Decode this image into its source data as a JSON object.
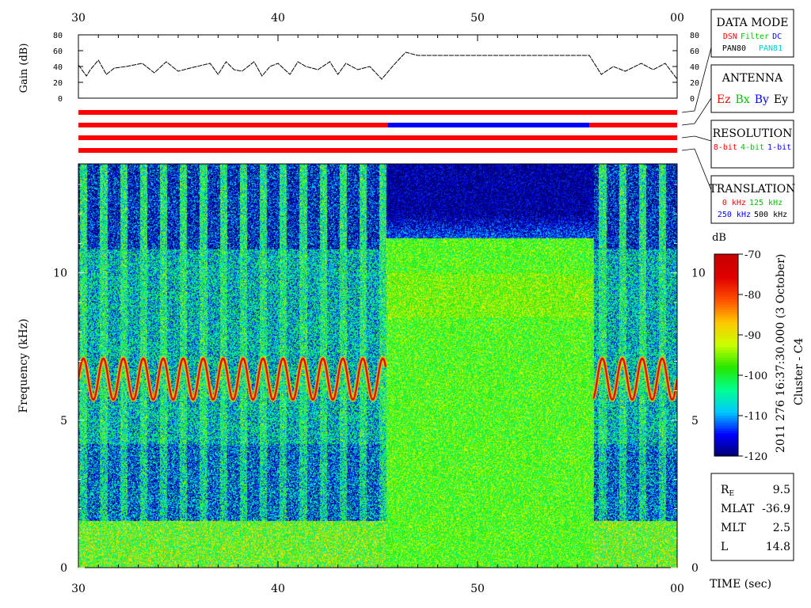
{
  "chart_data": {
    "type": "heatmap",
    "title_vertical_1": "2011 276 16:37:30.000 (3 October)",
    "title_vertical_2": "Cluster - C4",
    "xlabel": "TIME (sec)",
    "ylabel": "Frequency (kHz)",
    "x_ticks": [
      "30",
      "40",
      "50",
      "00"
    ],
    "x_range_sec": [
      30,
      60
    ],
    "y_ticks": [
      "0",
      "5",
      "10"
    ],
    "ylim": [
      0,
      13.7
    ],
    "colorbar": {
      "label": "dB",
      "ticks": [
        "-70",
        "-80",
        "-90",
        "-100",
        "-110",
        "-120"
      ],
      "range": [
        -120,
        -70
      ],
      "colors": [
        "#00006a",
        "#0000ff",
        "#00c8ff",
        "#00ff90",
        "#28e600",
        "#c8ff00",
        "#ffc800",
        "#ff5000",
        "#e00000",
        "#c80000"
      ]
    },
    "gain_panel": {
      "ylabel": "Gain (dB)",
      "y_ticks": [
        "0",
        "20",
        "40",
        "60",
        "80"
      ],
      "ylim": [
        0,
        80
      ],
      "x_sec": [
        30,
        30.4,
        30.6,
        31.0,
        31.4,
        31.8,
        32.4,
        33.2,
        33.8,
        34.4,
        35.0,
        35.6,
        36.6,
        37.0,
        37.4,
        37.8,
        38.2,
        38.8,
        39.2,
        39.6,
        40.0,
        40.6,
        41.0,
        41.4,
        42.0,
        42.6,
        43.0,
        43.4,
        44.0,
        44.6,
        45.2,
        45.8,
        46.4,
        47.0,
        55.6,
        56.2,
        56.8,
        57.4,
        58.2,
        58.8,
        59.4,
        60.0
      ],
      "values_db": [
        42,
        28,
        36,
        48,
        30,
        38,
        40,
        44,
        32,
        46,
        34,
        38,
        44,
        30,
        46,
        36,
        34,
        46,
        28,
        40,
        44,
        30,
        46,
        40,
        36,
        46,
        30,
        44,
        36,
        40,
        24,
        42,
        58,
        54,
        54,
        30,
        40,
        34,
        44,
        36,
        44,
        24
      ]
    },
    "status_rows": [
      {
        "row": "data-mode",
        "segments": [
          {
            "from": 30,
            "to": 60,
            "value": "DSN"
          }
        ]
      },
      {
        "row": "antenna",
        "segments": [
          {
            "from": 30,
            "to": 45.5,
            "value": "Ez"
          },
          {
            "from": 45.5,
            "to": 55.6,
            "value": "By"
          },
          {
            "from": 55.6,
            "to": 60,
            "value": "Ez"
          }
        ]
      },
      {
        "row": "resolution",
        "segments": [
          {
            "from": 30,
            "to": 60,
            "value": "8-bit"
          }
        ]
      },
      {
        "row": "translation",
        "segments": [
          {
            "from": 30,
            "to": 60,
            "value": "0 kHz"
          }
        ]
      }
    ],
    "emission_band": {
      "from_sec": [
        30,
        55.8
      ],
      "to_sec": [
        45.4,
        60
      ],
      "center_khz": 6.4,
      "amplitude_khz": 0.7,
      "level_db": -72
    },
    "segments_note_values": {
      "gap_start_sec": 45.4,
      "gap_end_sec": 55.8
    }
  },
  "legend_boxes": {
    "data_mode": {
      "title": "DATA MODE",
      "items": [
        {
          "text": "DSN",
          "color": "#ff0000"
        },
        {
          "text": "Filter",
          "color": "#00c000"
        },
        {
          "text": "DC",
          "color": "#0000ff"
        },
        {
          "text": "PAN80",
          "color": "#000000"
        },
        {
          "text": "PAN81",
          "color": "#00c8c8"
        }
      ]
    },
    "antenna": {
      "title": "ANTENNA",
      "items": [
        {
          "text": "Ez",
          "color": "#ff0000"
        },
        {
          "text": "Bx",
          "color": "#00c000"
        },
        {
          "text": "By",
          "color": "#0000ff"
        },
        {
          "text": "Ey",
          "color": "#000000"
        }
      ]
    },
    "resolution": {
      "title": "RESOLUTION",
      "items": [
        {
          "text": "8-bit",
          "color": "#ff0000"
        },
        {
          "text": "4-bit",
          "color": "#00c000"
        },
        {
          "text": "1-bit",
          "color": "#0000ff"
        }
      ]
    },
    "translation": {
      "title": "TRANSLATION",
      "items": [
        {
          "text": "0 kHz",
          "color": "#ff0000"
        },
        {
          "text": "125 kHz",
          "color": "#00c000"
        },
        {
          "text": "250 kHz",
          "color": "#0000ff"
        },
        {
          "text": "500 kHz",
          "color": "#000000"
        }
      ]
    }
  },
  "orbit_info": {
    "rows": [
      {
        "label": "R",
        "sub": "E",
        "value": "9.5"
      },
      {
        "label": "MLAT",
        "sub": "",
        "value": "-36.9"
      },
      {
        "label": "MLT",
        "sub": "",
        "value": "2.5"
      },
      {
        "label": "L",
        "sub": "",
        "value": "14.8"
      }
    ]
  }
}
